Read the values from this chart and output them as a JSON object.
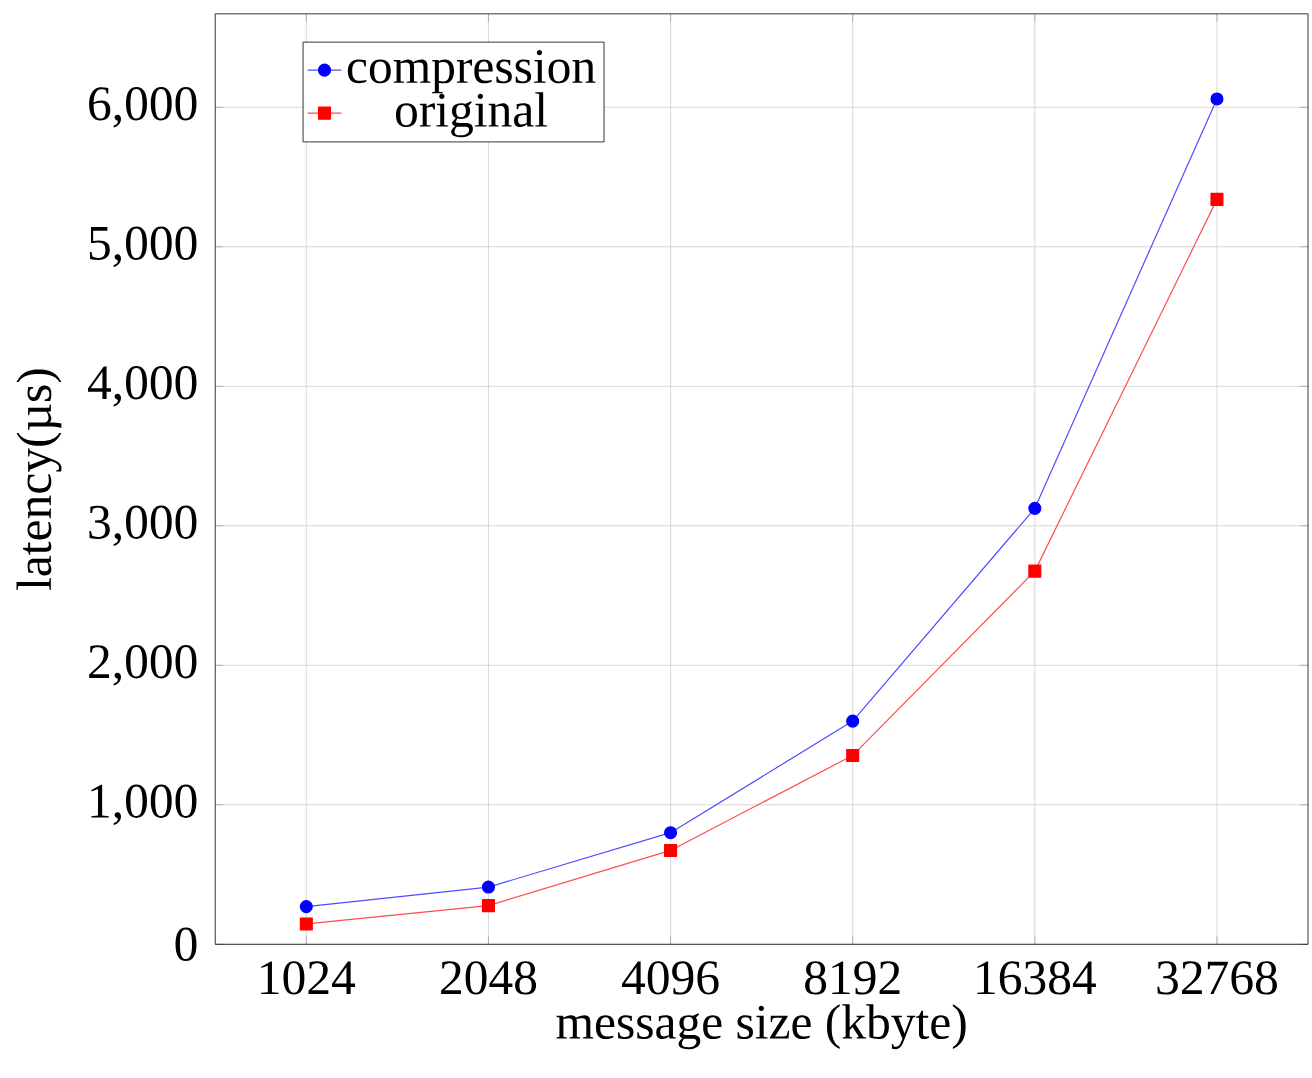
{
  "chart_data": {
    "type": "line",
    "xlabel": "message size (kbyte)",
    "ylabel": "latency(µs)",
    "categories": [
      "1024",
      "2048",
      "4096",
      "8192",
      "16384",
      "32768"
    ],
    "series": [
      {
        "name": "compression",
        "color": "#0000ff",
        "marker": "circle",
        "values": [
          270,
          410,
          800,
          1600,
          3125,
          6060
        ]
      },
      {
        "name": "original",
        "color": "#ff0000",
        "marker": "square",
        "values": [
          146,
          277,
          673,
          1354,
          2675,
          5340
        ]
      }
    ],
    "ylim": [
      0,
      6670
    ],
    "yticks": [
      0,
      {
        "value": 1000,
        "label": "1,000"
      },
      {
        "value": 2000,
        "label": "2,000"
      },
      {
        "value": 3000,
        "label": "3,000"
      },
      {
        "value": 4000,
        "label": "4,000"
      },
      {
        "value": 5000,
        "label": "5,000"
      },
      {
        "value": 6000,
        "label": "6,000"
      }
    ],
    "grid": true,
    "legend": "top left"
  }
}
